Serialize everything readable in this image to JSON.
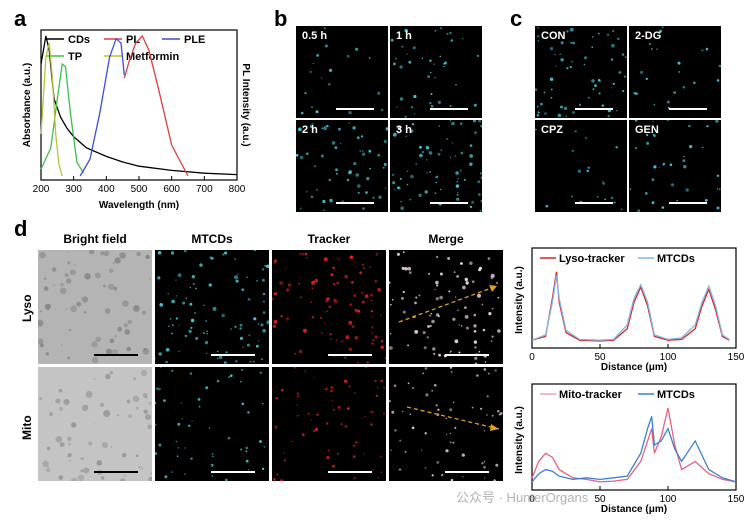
{
  "panels": {
    "a": "a",
    "b": "b",
    "c": "c",
    "d": "d"
  },
  "panel_a": {
    "legend": {
      "cds": "CDs",
      "pl": "PL",
      "ple": "PLE",
      "tp": "TP",
      "metformin": "Metformin"
    },
    "xlabel": "Wavelength (nm)",
    "ylabel_left": "Absorbance (a.u.)",
    "ylabel_right": "PL Intensity (a.u.)",
    "ticks": [
      "200",
      "300",
      "400",
      "500",
      "600",
      "700",
      "800"
    ]
  },
  "panel_b": {
    "labels": [
      "0.5 h",
      "1 h",
      "2 h",
      "3 h"
    ]
  },
  "panel_c": {
    "labels": [
      "CON",
      "2-DG",
      "CPZ",
      "GEN"
    ]
  },
  "panel_d": {
    "headers": [
      "Bright field",
      "MTCDs",
      "Tracker",
      "Merge"
    ],
    "rows": [
      "Lyso",
      "Mito"
    ],
    "plot1_legend": {
      "a": "Lyso-tracker",
      "b": "MTCDs"
    },
    "plot2_legend": {
      "a": "Mito-tracker",
      "b": "MTCDs"
    },
    "ylabel": "Intensity (a.u.)",
    "xlabel": "Distance (μm)",
    "ticks": [
      "0",
      "50",
      "100",
      "150"
    ]
  },
  "watermark": "公众号 · HunterOrgans",
  "colors": {
    "cds": "#000000",
    "pl": "#e03c3c",
    "ple": "#3b4fd6",
    "tp": "#3fbf4a",
    "metformin": "#b8c23a",
    "cyan": "#44c8d8",
    "red": "#e02020",
    "lightblue": "#7fb7e8"
  },
  "chart_data": [
    {
      "type": "line",
      "title": "",
      "xlabel": "Wavelength (nm)",
      "ylabel": "Absorbance (a.u.)",
      "xlim": [
        200,
        800
      ],
      "series": [
        {
          "name": "CDs",
          "x": [
            200,
            215,
            225,
            240,
            260,
            280,
            300,
            340,
            400,
            450,
            500,
            600,
            700,
            800
          ],
          "y": [
            0.8,
            1.0,
            0.9,
            0.55,
            0.42,
            0.34,
            0.28,
            0.2,
            0.14,
            0.1,
            0.07,
            0.04,
            0.02,
            0.01
          ]
        },
        {
          "name": "TP",
          "x": [
            200,
            230,
            250,
            265,
            275,
            290,
            310,
            330
          ],
          "y": [
            0.05,
            0.2,
            0.55,
            0.8,
            0.78,
            0.45,
            0.1,
            0.02
          ]
        },
        {
          "name": "Metformin",
          "x": [
            200,
            215,
            225,
            235,
            245,
            255,
            265
          ],
          "y": [
            0.3,
            0.85,
            0.95,
            0.7,
            0.3,
            0.08,
            0.0
          ]
        },
        {
          "name": "PLE",
          "x": [
            320,
            350,
            380,
            410,
            430,
            445,
            455
          ],
          "y": [
            0.0,
            0.12,
            0.45,
            0.85,
            0.98,
            0.95,
            0.72
          ]
        },
        {
          "name": "PL",
          "x": [
            455,
            470,
            490,
            510,
            530,
            560,
            600,
            650
          ],
          "y": [
            0.7,
            0.82,
            0.95,
            1.0,
            0.9,
            0.62,
            0.22,
            0.0
          ]
        }
      ]
    },
    {
      "type": "line",
      "xlabel": "Distance (μm)",
      "ylabel": "Intensity (a.u.)",
      "xlim": [
        0,
        150
      ],
      "series": [
        {
          "name": "Lyso-tracker",
          "x": [
            0,
            10,
            15,
            18,
            20,
            25,
            35,
            50,
            60,
            70,
            75,
            80,
            85,
            90,
            100,
            110,
            120,
            125,
            130,
            135,
            140,
            145
          ],
          "y": [
            0.05,
            0.1,
            0.6,
            0.95,
            0.55,
            0.15,
            0.05,
            0.04,
            0.05,
            0.2,
            0.55,
            0.75,
            0.5,
            0.1,
            0.05,
            0.06,
            0.2,
            0.5,
            0.72,
            0.45,
            0.1,
            0.05
          ]
        },
        {
          "name": "MTCDs",
          "x": [
            0,
            10,
            15,
            18,
            20,
            25,
            35,
            50,
            60,
            70,
            75,
            80,
            85,
            90,
            100,
            110,
            120,
            125,
            130,
            135,
            140,
            145
          ],
          "y": [
            0.05,
            0.12,
            0.55,
            0.9,
            0.6,
            0.18,
            0.06,
            0.05,
            0.06,
            0.25,
            0.6,
            0.78,
            0.55,
            0.12,
            0.06,
            0.08,
            0.25,
            0.55,
            0.76,
            0.5,
            0.12,
            0.06
          ]
        }
      ]
    },
    {
      "type": "line",
      "xlabel": "Distance (μm)",
      "ylabel": "Intensity (a.u.)",
      "xlim": [
        0,
        150
      ],
      "series": [
        {
          "name": "Mito-tracker",
          "x": [
            0,
            5,
            10,
            15,
            20,
            25,
            30,
            40,
            50,
            60,
            70,
            80,
            85,
            88,
            90,
            95,
            100,
            105,
            110,
            120,
            130,
            140,
            150
          ],
          "y": [
            0.1,
            0.3,
            0.4,
            0.35,
            0.2,
            0.15,
            0.1,
            0.08,
            0.05,
            0.06,
            0.08,
            0.3,
            0.55,
            0.7,
            0.4,
            0.6,
            0.95,
            0.5,
            0.2,
            0.3,
            0.15,
            0.08,
            0.05
          ]
        },
        {
          "name": "MTCDs",
          "x": [
            0,
            5,
            10,
            15,
            20,
            25,
            30,
            40,
            50,
            60,
            70,
            80,
            85,
            88,
            90,
            95,
            100,
            105,
            110,
            120,
            130,
            140,
            150
          ],
          "y": [
            0.05,
            0.15,
            0.2,
            0.18,
            0.12,
            0.1,
            0.08,
            0.1,
            0.08,
            0.1,
            0.12,
            0.4,
            0.7,
            0.85,
            0.5,
            0.55,
            0.7,
            0.45,
            0.3,
            0.55,
            0.2,
            0.1,
            0.05
          ]
        }
      ]
    }
  ]
}
